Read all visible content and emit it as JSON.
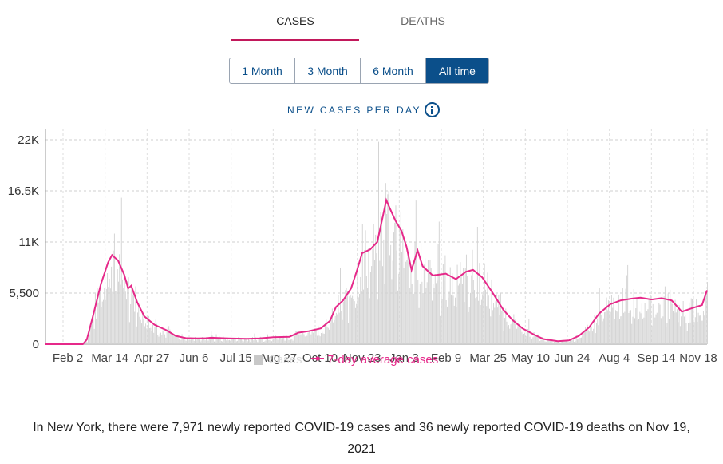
{
  "tabs": {
    "cases_label": "CASES",
    "deaths_label": "DEATHS",
    "active": "cases"
  },
  "range": {
    "buttons": [
      "1 Month",
      "3 Month",
      "6 Month",
      "All time"
    ],
    "active": "All time"
  },
  "chart_title": "NEW CASES PER DAY",
  "colors": {
    "accent": "#c2185b",
    "line": "#e6298a",
    "bars": "#d3d3d3",
    "nav": "#0b4f8a"
  },
  "legend": {
    "bars_label": "Cases",
    "line_label": "7-day average cases"
  },
  "summary": "In New York, there were 7,971 newly reported COVID-19 cases and 36 newly reported COVID-19 deaths on Nov 19, 2021",
  "chart_data": {
    "type": "bar",
    "title": "NEW CASES PER DAY",
    "x_range": [
      "2020-02-02",
      "2021-11-19"
    ],
    "ylim": [
      0,
      22000
    ],
    "yticks": [
      0,
      5500,
      11000,
      16500,
      22000
    ],
    "ytick_labels": [
      "0",
      "5,500",
      "11K",
      "16.5K",
      "22K"
    ],
    "xtick_labels": [
      "Feb 2",
      "Mar 14",
      "Apr 27",
      "Jun 6",
      "Jul 15",
      "Aug 27",
      "Oct 10",
      "Nov 23",
      "Jan 3",
      "Feb 9",
      "Mar 25",
      "May 10",
      "Jun 24",
      "Aug 4",
      "Sep 14",
      "Nov 18"
    ],
    "grid": true,
    "series": [
      {
        "name": "7-day average cases",
        "type": "line",
        "points": [
          [
            "2020-02-02",
            0
          ],
          [
            "2020-03-10",
            0
          ],
          [
            "2020-03-14",
            500
          ],
          [
            "2020-03-20",
            3000
          ],
          [
            "2020-03-28",
            6500
          ],
          [
            "2020-04-04",
            8800
          ],
          [
            "2020-04-08",
            9600
          ],
          [
            "2020-04-14",
            9000
          ],
          [
            "2020-04-20",
            7500
          ],
          [
            "2020-04-24",
            6000
          ],
          [
            "2020-04-27",
            6300
          ],
          [
            "2020-05-03",
            4500
          ],
          [
            "2020-05-10",
            3000
          ],
          [
            "2020-05-20",
            2100
          ],
          [
            "2020-06-01",
            1500
          ],
          [
            "2020-06-10",
            900
          ],
          [
            "2020-06-20",
            650
          ],
          [
            "2020-07-01",
            620
          ],
          [
            "2020-07-10",
            640
          ],
          [
            "2020-07-15",
            700
          ],
          [
            "2020-08-01",
            620
          ],
          [
            "2020-08-20",
            580
          ],
          [
            "2020-09-01",
            630
          ],
          [
            "2020-09-15",
            750
          ],
          [
            "2020-10-01",
            800
          ],
          [
            "2020-10-10",
            1250
          ],
          [
            "2020-10-20",
            1400
          ],
          [
            "2020-11-01",
            1700
          ],
          [
            "2020-11-10",
            2500
          ],
          [
            "2020-11-16",
            4000
          ],
          [
            "2020-11-23",
            4700
          ],
          [
            "2020-12-01",
            6000
          ],
          [
            "2020-12-07",
            8000
          ],
          [
            "2020-12-12",
            9800
          ],
          [
            "2020-12-20",
            10200
          ],
          [
            "2020-12-27",
            11000
          ],
          [
            "2021-01-01",
            13500
          ],
          [
            "2021-01-05",
            15500
          ],
          [
            "2021-01-09",
            14500
          ],
          [
            "2021-01-14",
            13300
          ],
          [
            "2021-01-20",
            12200
          ],
          [
            "2021-01-25",
            10500
          ],
          [
            "2021-01-30",
            8000
          ],
          [
            "2021-02-05",
            10100
          ],
          [
            "2021-02-10",
            8400
          ],
          [
            "2021-02-20",
            7400
          ],
          [
            "2021-03-05",
            7600
          ],
          [
            "2021-03-15",
            7000
          ],
          [
            "2021-03-25",
            7800
          ],
          [
            "2021-04-01",
            8000
          ],
          [
            "2021-04-10",
            7200
          ],
          [
            "2021-04-20",
            5600
          ],
          [
            "2021-05-01",
            3700
          ],
          [
            "2021-05-10",
            2600
          ],
          [
            "2021-05-20",
            1700
          ],
          [
            "2021-06-01",
            1000
          ],
          [
            "2021-06-10",
            550
          ],
          [
            "2021-06-24",
            330
          ],
          [
            "2021-07-05",
            400
          ],
          [
            "2021-07-15",
            900
          ],
          [
            "2021-07-25",
            1800
          ],
          [
            "2021-08-04",
            3300
          ],
          [
            "2021-08-15",
            4300
          ],
          [
            "2021-08-25",
            4700
          ],
          [
            "2021-09-05",
            4900
          ],
          [
            "2021-09-14",
            5000
          ],
          [
            "2021-09-25",
            4800
          ],
          [
            "2021-10-05",
            4950
          ],
          [
            "2021-10-15",
            4700
          ],
          [
            "2021-10-25",
            3500
          ],
          [
            "2021-11-05",
            3900
          ],
          [
            "2021-11-14",
            4200
          ],
          [
            "2021-11-19",
            5800
          ]
        ]
      }
    ]
  }
}
